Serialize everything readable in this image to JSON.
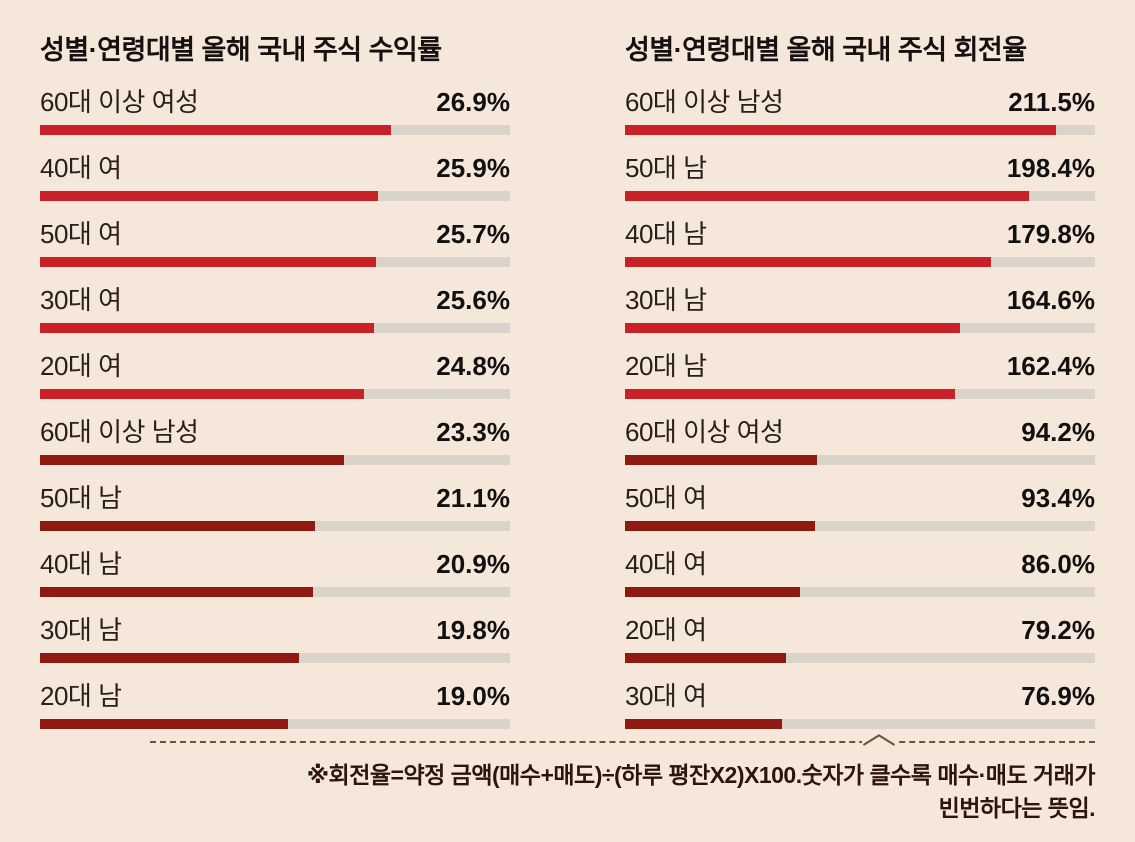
{
  "page": {
    "background": "#f5e7d9",
    "track_color": "#d9d3ca",
    "accent_bright_red": "#c92128",
    "accent_dark_red": "#8e1a12"
  },
  "chart_data": [
    {
      "type": "bar",
      "title": "성별·연령대별 올해 국내 주식 수익률",
      "categories": [
        "60대 이상 여성",
        "40대 여",
        "50대 여",
        "30대 여",
        "20대 여",
        "60대 이상 남성",
        "50대 남",
        "40대 남",
        "30대 남",
        "20대 남"
      ],
      "values": [
        26.9,
        25.9,
        25.7,
        25.6,
        24.8,
        23.3,
        21.1,
        20.9,
        19.8,
        19.0
      ],
      "value_labels": [
        "26.9%",
        "25.9%",
        "25.7%",
        "25.6%",
        "24.8%",
        "23.3%",
        "21.1%",
        "20.9%",
        "19.8%",
        "19.0%"
      ],
      "bar_colors": [
        "#c92128",
        "#c92128",
        "#c92128",
        "#c92128",
        "#c92128",
        "#8e1a12",
        "#8e1a12",
        "#8e1a12",
        "#8e1a12",
        "#8e1a12"
      ],
      "xlim": [
        0,
        36
      ],
      "xlabel": "",
      "ylabel": "",
      "grid": false,
      "legend": "none"
    },
    {
      "type": "bar",
      "title": "성별·연령대별 올해 국내 주식 회전율",
      "categories": [
        "60대 이상 남성",
        "50대 남",
        "40대 남",
        "30대 남",
        "20대 남",
        "60대 이상 여성",
        "50대 여",
        "40대 여",
        "20대 여",
        "30대 여"
      ],
      "values": [
        211.5,
        198.4,
        179.8,
        164.6,
        162.4,
        94.2,
        93.4,
        86.0,
        79.2,
        76.9
      ],
      "value_labels": [
        "211.5%",
        "198.4%",
        "179.8%",
        "164.6%",
        "162.4%",
        "94.2%",
        "93.4%",
        "86.0%",
        "79.2%",
        "76.9%"
      ],
      "bar_colors": [
        "#c92128",
        "#c92128",
        "#c92128",
        "#c92128",
        "#c92128",
        "#8e1a12",
        "#8e1a12",
        "#8e1a12",
        "#8e1a12",
        "#8e1a12"
      ],
      "xlim": [
        0,
        231
      ],
      "xlabel": "",
      "ylabel": "",
      "grid": false,
      "legend": "none"
    }
  ],
  "footer": {
    "line1": "※회전율=약정 금액(매수+매도)÷(하루 평잔X2)X100.숫자가 클수록 매수·매도 거래가",
    "line2": "빈번하다는 뜻임."
  }
}
